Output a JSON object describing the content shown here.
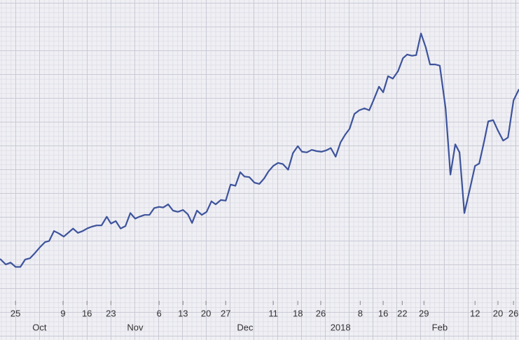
{
  "chart_data": {
    "type": "line",
    "x": [
      -4.8,
      -3.0,
      -1.5,
      0,
      1.5,
      3.0,
      4.5,
      6.1,
      7.6,
      9.1,
      10.4,
      11.9,
      13.4,
      14.9,
      16.5,
      17.8,
      19.3,
      20.8,
      22.1,
      23.6,
      25.1,
      26.6,
      28.2,
      29.5,
      31.0,
      32.5,
      34.0,
      35.5,
      37.0,
      38.3,
      39.9,
      41.4,
      42.9,
      44.4,
      45.7,
      47.2,
      48.7,
      50.2,
      51.8,
      53.3,
      54.6,
      56.1,
      57.6,
      59.1,
      60.6,
      61.9,
      63.5,
      65.0,
      66.5,
      68.0,
      69.5,
      70.8,
      72.3,
      73.9,
      75.4,
      76.9,
      78.2,
      79.7,
      81.2,
      82.7,
      84.3,
      85.8,
      87.3,
      88.6,
      90.1,
      91.6,
      93.1,
      94.6,
      96.0,
      97.5,
      99.0,
      100.5,
      102.0,
      103.3,
      104.8,
      106.3,
      107.9,
      109.4,
      110.7,
      112.4,
      113.7,
      115.2,
      116.7,
      118.3,
      119.8,
      121.1,
      122.6,
      123.9,
      125.4,
      126.9,
      128.2,
      129.7,
      131.2,
      133.0,
      134.5,
      136.0,
      137.3,
      138.8,
      140.6,
      142.1,
      143.4,
      144.9,
      146.2,
      147.7,
      149.2,
      150.8,
      152.3,
      154.0,
      155.7
    ],
    "series": [
      {
        "color": "#3d539b",
        "values": [
          2508,
          2499,
          2502,
          2495,
          2495,
          2507,
          2509,
          2518,
          2527,
          2535,
          2537,
          2553,
          2549,
          2544,
          2551,
          2557,
          2550,
          2553,
          2557,
          2560,
          2562,
          2562,
          2576,
          2565,
          2569,
          2557,
          2561,
          2582,
          2573,
          2576,
          2579,
          2579,
          2590,
          2592,
          2591,
          2596,
          2586,
          2584,
          2587,
          2580,
          2566,
          2586,
          2579,
          2584,
          2601,
          2596,
          2603,
          2602,
          2628,
          2626,
          2648,
          2641,
          2640,
          2631,
          2629,
          2638,
          2649,
          2658,
          2663,
          2661,
          2652,
          2679,
          2690,
          2681,
          2680,
          2684,
          2682,
          2681,
          2683,
          2687,
          2673,
          2696,
          2709,
          2718,
          2742,
          2748,
          2751,
          2748,
          2764,
          2786,
          2777,
          2803,
          2799,
          2811,
          2832,
          2838,
          2836,
          2837,
          2872,
          2849,
          2822,
          2822,
          2820,
          2751,
          2644,
          2693,
          2680,
          2582,
          2623,
          2658,
          2662,
          2697,
          2730,
          2732,
          2715,
          2699,
          2704,
          2764,
          2782
        ]
      }
    ],
    "xlim": [
      -4.8,
      155.7
    ],
    "ylim": [
      2377,
      2926
    ],
    "xticks": [
      {
        "value": 0,
        "label": "25"
      },
      {
        "value": 14.7,
        "label": "9"
      },
      {
        "value": 22.1,
        "label": "16"
      },
      {
        "value": 29.5,
        "label": "23"
      },
      {
        "value": 44.4,
        "label": "6"
      },
      {
        "value": 51.8,
        "label": "13"
      },
      {
        "value": 58.9,
        "label": "20"
      },
      {
        "value": 65.0,
        "label": "27"
      },
      {
        "value": 79.7,
        "label": "11"
      },
      {
        "value": 87.3,
        "label": "18"
      },
      {
        "value": 94.4,
        "label": "26"
      },
      {
        "value": 106.6,
        "label": "8"
      },
      {
        "value": 113.7,
        "label": "16"
      },
      {
        "value": 119.6,
        "label": "22"
      },
      {
        "value": 126.3,
        "label": "29"
      },
      {
        "value": 142.1,
        "label": "12"
      },
      {
        "value": 149.2,
        "label": "20"
      },
      {
        "value": 154.0,
        "label": "26"
      }
    ],
    "month_ticks": [
      {
        "value": 7.4,
        "label": "Oct"
      },
      {
        "value": 37.0,
        "label": "Nov"
      },
      {
        "value": 71.0,
        "label": "Dec"
      },
      {
        "value": 100.5,
        "label": "2018"
      },
      {
        "value": 131.2,
        "label": "Feb"
      }
    ]
  }
}
